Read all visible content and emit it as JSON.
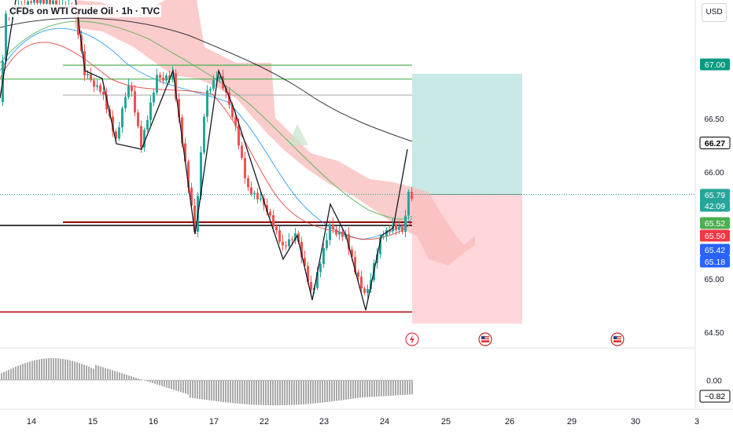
{
  "header": {
    "symbol": "CFDs on WTI Crude Oil · 1h · TVC",
    "currency": "USD"
  },
  "price_axis": {
    "ticks": [
      "66.50",
      "66.00",
      "65.00",
      "64.50"
    ],
    "ticks_values": [
      66.5,
      66.0,
      65.0,
      64.5
    ]
  },
  "price_labels": [
    {
      "text": "67.00",
      "value": 67.0,
      "color": "#089981"
    },
    {
      "text": "66.27",
      "value": 66.27,
      "color": "#000000"
    },
    {
      "text": "65.79",
      "value": 65.79,
      "color": "#26a69a"
    },
    {
      "text": "42:09",
      "value": 65.71,
      "color": "#26a69a"
    },
    {
      "text": "65.52",
      "value": 65.52,
      "color": "#4caf50"
    },
    {
      "text": "65.50",
      "value": 65.5,
      "color": "#f23645"
    },
    {
      "text": "65.42",
      "value": 65.42,
      "color": "#2962ff"
    },
    {
      "text": "65.18",
      "value": 65.18,
      "color": "#2962ff"
    }
  ],
  "oscillator": {
    "zero_label": "0.00",
    "value_label": "−0.82"
  },
  "time_axis": {
    "labels": [
      "14",
      "15",
      "16",
      "17",
      "22",
      "23",
      "24",
      "25",
      "26",
      "29",
      "30",
      "3"
    ]
  },
  "colors": {
    "up": "#26a69a",
    "down": "#ef5350",
    "profit_zone": "#b2dfdb",
    "loss_zone": "#ffcdd2",
    "cloud": "#f8bbb9",
    "green_line": "#4caf50",
    "red_line": "#b71c1c"
  },
  "chart_data": {
    "type": "candlestick",
    "title": "CFDs on WTI Crude Oil · 1h · TVC",
    "ylim": [
      64.3,
      67.6
    ],
    "horizontal_levels": [
      {
        "value": 67.0,
        "color": "green"
      },
      {
        "value": 66.87,
        "color": "green"
      },
      {
        "value": 66.72,
        "color": "gray"
      },
      {
        "value": 65.53,
        "color": "darkred"
      },
      {
        "value": 65.5,
        "color": "black"
      },
      {
        "value": 64.69,
        "color": "darkred"
      }
    ],
    "position_tool": {
      "entry": 65.79,
      "target": 66.92,
      "stop": 64.58
    },
    "current_price": 65.79,
    "countdown": "42:09",
    "moving_averages": [
      "66.27",
      "65.52",
      "65.50",
      "65.42",
      "65.18"
    ],
    "oscillator_value": -0.82
  }
}
